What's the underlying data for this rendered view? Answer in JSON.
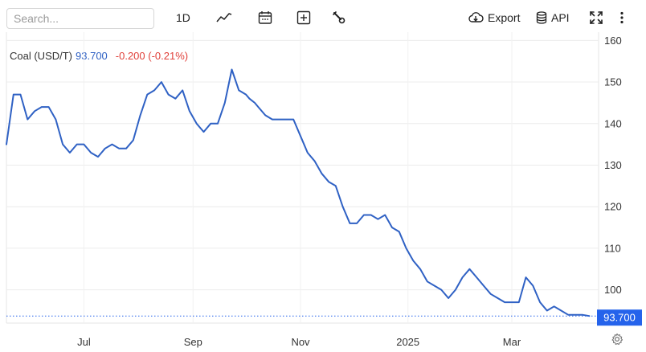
{
  "search": {
    "placeholder": "Search..."
  },
  "toolbar": {
    "interval_label": "1D",
    "export_label": "Export",
    "api_label": "API",
    "icons": [
      "line-chart-icon",
      "calendar-icon",
      "plus-square-icon",
      "wrench-icon",
      "cloud-download-icon",
      "database-icon",
      "fullscreen-icon",
      "more-vert-icon"
    ]
  },
  "legend": {
    "name": "Coal (USD/T)",
    "price": "93.700",
    "change": "-0.200 (-0.21%)"
  },
  "colors": {
    "line": "#2f61c4",
    "negative": "#e0403a",
    "price_tag": "#2563eb",
    "grid": "#ececec"
  },
  "chart_data": {
    "type": "line",
    "y_axis": {
      "position": "right",
      "ylim": [
        92,
        162
      ],
      "ticks": [
        100,
        110,
        120,
        130,
        140,
        150,
        160
      ]
    },
    "x_axis": {
      "tick_labels": [
        "Jul",
        "Sep",
        "Nov",
        "2025",
        "Mar"
      ],
      "xlim": [
        "2024-05-18",
        "2025-04-17"
      ]
    },
    "grid": "horizontal",
    "last_value_label": "93.700",
    "series": [
      {
        "x": [
          "2024-05-18",
          "2024-05-22",
          "2024-05-26",
          "2024-05-30",
          "2024-06-03",
          "2024-06-07",
          "2024-06-11",
          "2024-06-15",
          "2024-06-19",
          "2024-06-23",
          "2024-06-27",
          "2024-07-01",
          "2024-07-05",
          "2024-07-09",
          "2024-07-13",
          "2024-07-17",
          "2024-07-21",
          "2024-07-25",
          "2024-07-29",
          "2024-08-02",
          "2024-08-06",
          "2024-08-10",
          "2024-08-14",
          "2024-08-18",
          "2024-08-22",
          "2024-08-26",
          "2024-08-30",
          "2024-09-03",
          "2024-09-07",
          "2024-09-11",
          "2024-09-15",
          "2024-09-19",
          "2024-09-23",
          "2024-09-27",
          "2024-10-01",
          "2024-10-03",
          "2024-10-06",
          "2024-10-08",
          "2024-10-12",
          "2024-10-16",
          "2024-10-20",
          "2024-10-24",
          "2024-10-28",
          "2024-11-01",
          "2024-11-05",
          "2024-11-09",
          "2024-11-13",
          "2024-11-17",
          "2024-11-21",
          "2024-11-25",
          "2024-11-29",
          "2024-12-03",
          "2024-12-07",
          "2024-12-11",
          "2024-12-15",
          "2024-12-19",
          "2024-12-23",
          "2024-12-27",
          "2024-12-31",
          "2025-01-04",
          "2025-01-08",
          "2025-01-12",
          "2025-01-16",
          "2025-01-20",
          "2025-01-24",
          "2025-01-28",
          "2025-02-01",
          "2025-02-05",
          "2025-02-09",
          "2025-02-13",
          "2025-02-17",
          "2025-02-21",
          "2025-02-25",
          "2025-03-01",
          "2025-03-05",
          "2025-03-09",
          "2025-03-13",
          "2025-03-17",
          "2025-03-21",
          "2025-03-25",
          "2025-03-29",
          "2025-04-02",
          "2025-04-06",
          "2025-04-10",
          "2025-04-14"
        ],
        "y": [
          135,
          147,
          147,
          141,
          143,
          144,
          144,
          141,
          135,
          133,
          135,
          135,
          133,
          132,
          134,
          135,
          134,
          134,
          136,
          142,
          147,
          148,
          150,
          147,
          146,
          148,
          143,
          140,
          138,
          140,
          140,
          145,
          153,
          148,
          147,
          146,
          145,
          144,
          142,
          141,
          141,
          141,
          141,
          137,
          133,
          131,
          128,
          126,
          125,
          120,
          116,
          116,
          118,
          118,
          117,
          118,
          115,
          114,
          110,
          107,
          105,
          102,
          101,
          100,
          98,
          100,
          103,
          105,
          103,
          101,
          99,
          98,
          97,
          97,
          97,
          103,
          101,
          97,
          95,
          96,
          95,
          94,
          94,
          94,
          93.7
        ]
      }
    ]
  }
}
